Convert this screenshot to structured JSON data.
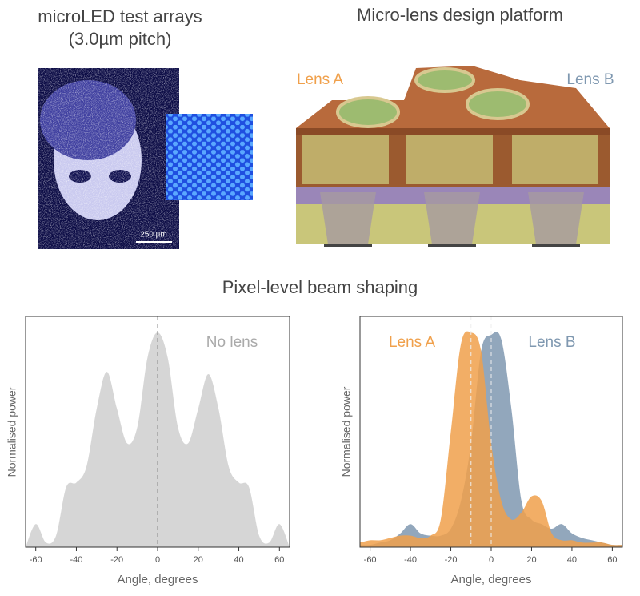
{
  "arrays": {
    "title": "microLED test arrays",
    "subtitle": "(3.0µm pitch)",
    "scale_bar": "250 µm"
  },
  "design": {
    "title": "Micro-lens design platform",
    "label_a": "Lens A",
    "label_b": "Lens B"
  },
  "section_title": "Pixel-level beam shaping",
  "chart_data": [
    {
      "type": "area",
      "x_label": "Angle, degrees",
      "y_label": "Normalised power",
      "xlim": [
        -65,
        65
      ],
      "xticks": [
        -60,
        -40,
        -20,
        0,
        20,
        40,
        60
      ],
      "ylim": [
        0,
        1
      ],
      "vlines": [
        0
      ],
      "x": [
        -65,
        -60,
        -55,
        -50,
        -45,
        -40,
        -35,
        -30,
        -25,
        -20,
        -15,
        -10,
        -5,
        0,
        5,
        10,
        15,
        20,
        25,
        30,
        35,
        40,
        45,
        50,
        55,
        60,
        65
      ],
      "series": [
        {
          "name": "No lens",
          "color": "#d6d6d6",
          "values": [
            0,
            0.1,
            0.02,
            0.05,
            0.26,
            0.28,
            0.35,
            0.6,
            0.76,
            0.6,
            0.45,
            0.52,
            0.82,
            0.93,
            0.82,
            0.52,
            0.45,
            0.6,
            0.75,
            0.6,
            0.35,
            0.28,
            0.26,
            0.05,
            0.02,
            0.1,
            0
          ]
        }
      ]
    },
    {
      "type": "area",
      "x_label": "Angle, degrees",
      "y_label": "Normalised power",
      "xlim": [
        -65,
        65
      ],
      "xticks": [
        -60,
        -40,
        -20,
        0,
        20,
        40,
        60
      ],
      "ylim": [
        0,
        1
      ],
      "vlines": [
        -10,
        0
      ],
      "x": [
        -65,
        -60,
        -55,
        -50,
        -45,
        -40,
        -35,
        -30,
        -25,
        -20,
        -15,
        -10,
        -5,
        0,
        5,
        10,
        15,
        20,
        25,
        30,
        35,
        40,
        45,
        50,
        55,
        60,
        65
      ],
      "series": [
        {
          "name": "Lens B",
          "color": "#7f98b0",
          "values": [
            0.01,
            0.01,
            0.02,
            0.03,
            0.06,
            0.1,
            0.06,
            0.05,
            0.05,
            0.08,
            0.2,
            0.45,
            0.85,
            0.92,
            0.9,
            0.6,
            0.2,
            0.12,
            0.1,
            0.08,
            0.1,
            0.06,
            0.04,
            0.03,
            0.02,
            0.01,
            0.01
          ]
        },
        {
          "name": "Lens A",
          "color": "#f0a04b",
          "values": [
            0.02,
            0.03,
            0.03,
            0.04,
            0.05,
            0.05,
            0.04,
            0.05,
            0.12,
            0.5,
            0.88,
            0.93,
            0.85,
            0.45,
            0.2,
            0.12,
            0.15,
            0.22,
            0.2,
            0.06,
            0.03,
            0.03,
            0.02,
            0.02,
            0.02,
            0.01,
            0.01
          ]
        }
      ]
    }
  ]
}
